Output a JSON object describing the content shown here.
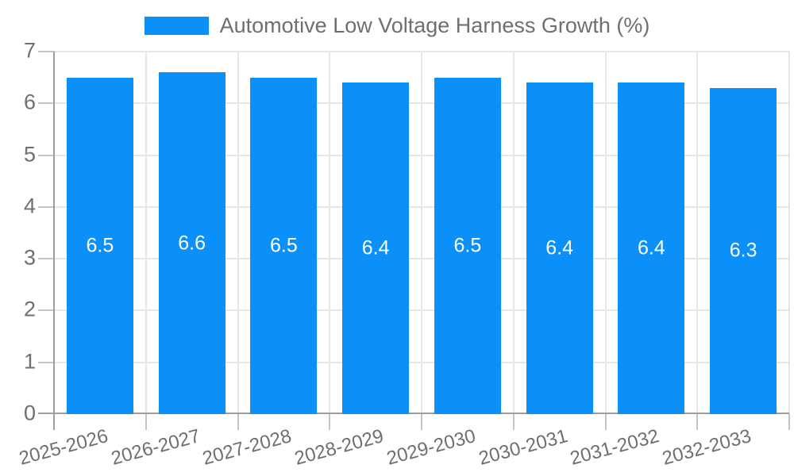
{
  "chart_data": {
    "type": "bar",
    "title": "",
    "legend": "Automotive Low Voltage Harness Growth (%)",
    "legend_position": "top-center",
    "categories": [
      "2025-2026",
      "2026-2027",
      "2027-2028",
      "2028-2029",
      "2029-2030",
      "2030-2031",
      "2031-2032",
      "2032-2033"
    ],
    "values": [
      6.5,
      6.6,
      6.5,
      6.4,
      6.5,
      6.4,
      6.4,
      6.3
    ],
    "bar_labels": [
      "6.5",
      "6.6",
      "6.5",
      "6.4",
      "6.5",
      "6.4",
      "6.4",
      "6.3"
    ],
    "xlabel": "",
    "ylabel": "",
    "ylim": [
      0,
      7
    ],
    "yticks": [
      0,
      1,
      2,
      3,
      4,
      5,
      6,
      7
    ],
    "grid": true,
    "x_label_rotation_deg": -15,
    "colors": {
      "bar": "#0b90fa",
      "bar_label_text": "#ffffff",
      "axis": "#9e9e9e",
      "grid": "#e6e6e6",
      "tick": "#c4c4c4",
      "text": "#6f6f6f"
    }
  }
}
